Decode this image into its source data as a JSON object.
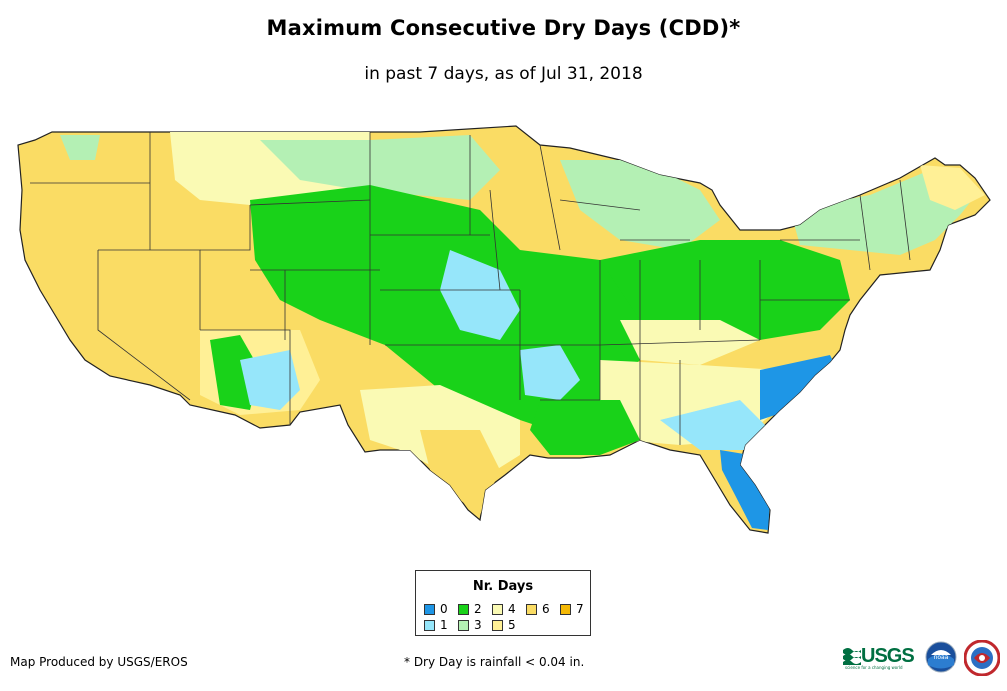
{
  "title": "Maximum Consecutive Dry Days (CDD)*",
  "subtitle": "in past 7 days, as of Jul 31, 2018",
  "legend": {
    "title": "Nr. Days",
    "items": [
      {
        "label": "0",
        "color": "#1e96e6"
      },
      {
        "label": "1",
        "color": "#96e6fa"
      },
      {
        "label": "2",
        "color": "#19d219"
      },
      {
        "label": "3",
        "color": "#b4f0b4"
      },
      {
        "label": "4",
        "color": "#fafab4"
      },
      {
        "label": "5",
        "color": "#fff096"
      },
      {
        "label": "6",
        "color": "#fadc64"
      },
      {
        "label": "7",
        "color": "#f5b905"
      }
    ]
  },
  "credit": "Map Produced by USGS/EROS",
  "footnote": "* Dry Day is rainfall < 0.04 in.",
  "logos": {
    "usgs": "USGS",
    "usgs_tagline": "science for a changing world",
    "noaa": "noaa"
  }
}
